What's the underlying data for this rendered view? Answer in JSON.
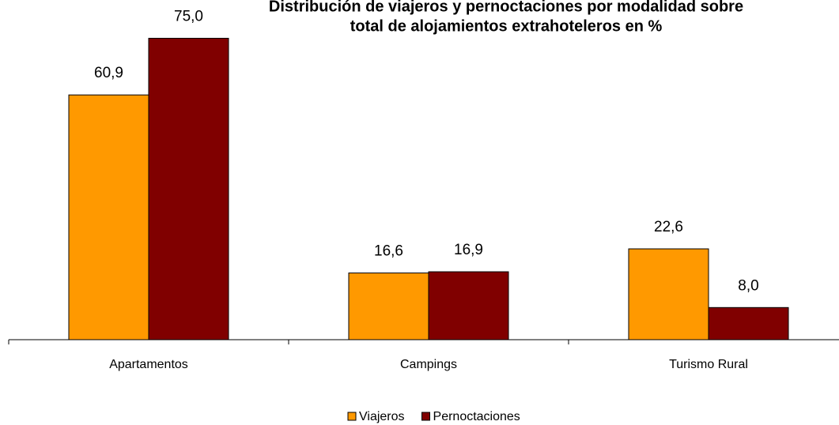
{
  "chart_data": {
    "type": "bar",
    "title": [
      "Distribución de viajeros y pernoctaciones por modalidad sobre",
      "total de alojamientos extrahoteleros en  %"
    ],
    "categories": [
      "Apartamentos",
      "Campings",
      "Turismo Rural"
    ],
    "series": [
      {
        "name": "Viajeros",
        "color": "#ff9900",
        "values": [
          60.9,
          16.6,
          22.6
        ],
        "value_labels": [
          "60,9",
          "16,6",
          "22,6"
        ]
      },
      {
        "name": "Pernoctaciones",
        "color": "#800000",
        "values": [
          75.0,
          16.9,
          8.0
        ],
        "value_labels": [
          "75,0",
          "16,9",
          "8,0"
        ]
      }
    ],
    "ylim": [
      0,
      80
    ],
    "legend": "bottom"
  }
}
